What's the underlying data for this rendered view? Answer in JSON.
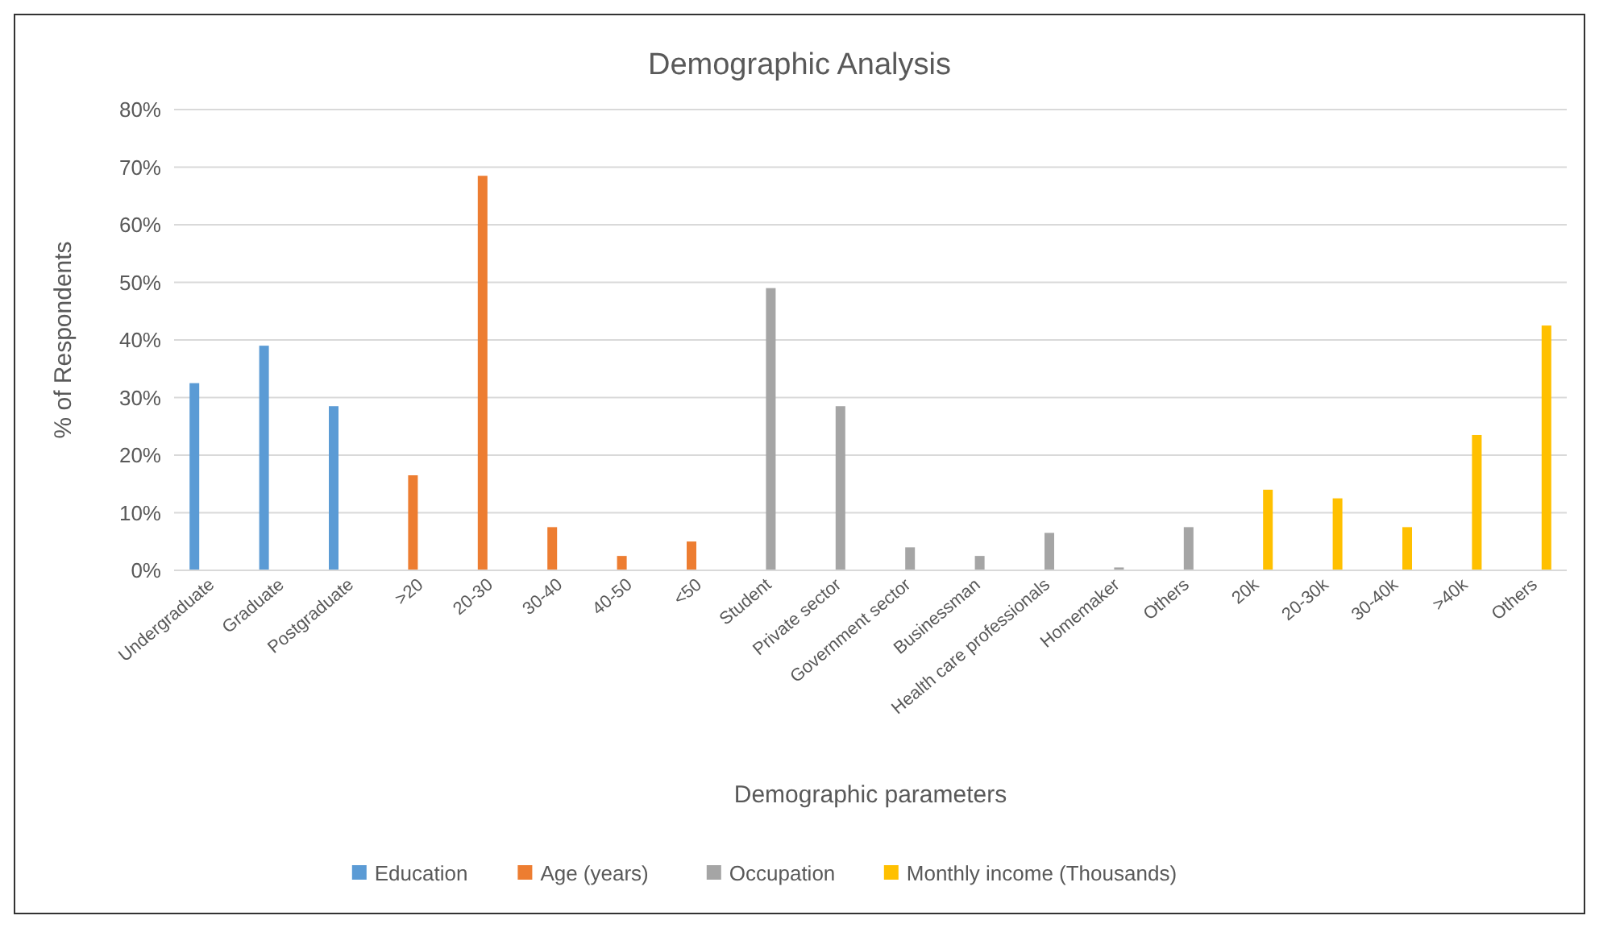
{
  "chart_data": {
    "type": "bar",
    "title": "Demographic Analysis",
    "xlabel": "Demographic parameters",
    "ylabel": "% of Respondents",
    "categories": [
      "Undergraduate",
      "Graduate",
      "Postgraduate",
      ">20",
      "20-30",
      "30-40",
      "40-50",
      "<50",
      "Student",
      "Private sector",
      "Government sector",
      "Businessman",
      "Health care professionals",
      "Homemaker",
      "Others",
      "20k",
      "20-30k",
      "30-40k",
      ">40k",
      "Others"
    ],
    "series": [
      {
        "name": "Education",
        "color": "#5b9bd5",
        "values": [
          32.5,
          39,
          28.5,
          null,
          null,
          null,
          null,
          null,
          null,
          null,
          null,
          null,
          null,
          null,
          null,
          null,
          null,
          null,
          null,
          null
        ]
      },
      {
        "name": "Age (years)",
        "color": "#ed7d31",
        "values": [
          null,
          null,
          null,
          16.5,
          68.5,
          7.5,
          2.5,
          5,
          null,
          null,
          null,
          null,
          null,
          null,
          null,
          null,
          null,
          null,
          null,
          null
        ]
      },
      {
        "name": "Occupation",
        "color": "#a5a5a5",
        "values": [
          null,
          null,
          null,
          null,
          null,
          null,
          null,
          null,
          49,
          28.5,
          4,
          2.5,
          6.5,
          0.5,
          7.5,
          null,
          null,
          null,
          null,
          null
        ]
      },
      {
        "name": "Monthly income (Thousands)",
        "color": "#ffc000",
        "values": [
          null,
          null,
          null,
          null,
          null,
          null,
          null,
          null,
          null,
          null,
          null,
          null,
          null,
          null,
          null,
          14,
          12.5,
          7.5,
          23.5,
          42.5
        ]
      }
    ],
    "ylim": [
      0,
      80
    ],
    "yticks": [
      {
        "value": 0,
        "label": "0%"
      },
      {
        "value": 10,
        "label": "10%"
      },
      {
        "value": 20,
        "label": "20%"
      },
      {
        "value": 30,
        "label": "30%"
      },
      {
        "value": 40,
        "label": "40%"
      },
      {
        "value": 50,
        "label": "50%"
      },
      {
        "value": 60,
        "label": "60%"
      },
      {
        "value": 70,
        "label": "70%"
      },
      {
        "value": 80,
        "label": "80%"
      }
    ],
    "grid": "y",
    "legend": "bottom"
  }
}
